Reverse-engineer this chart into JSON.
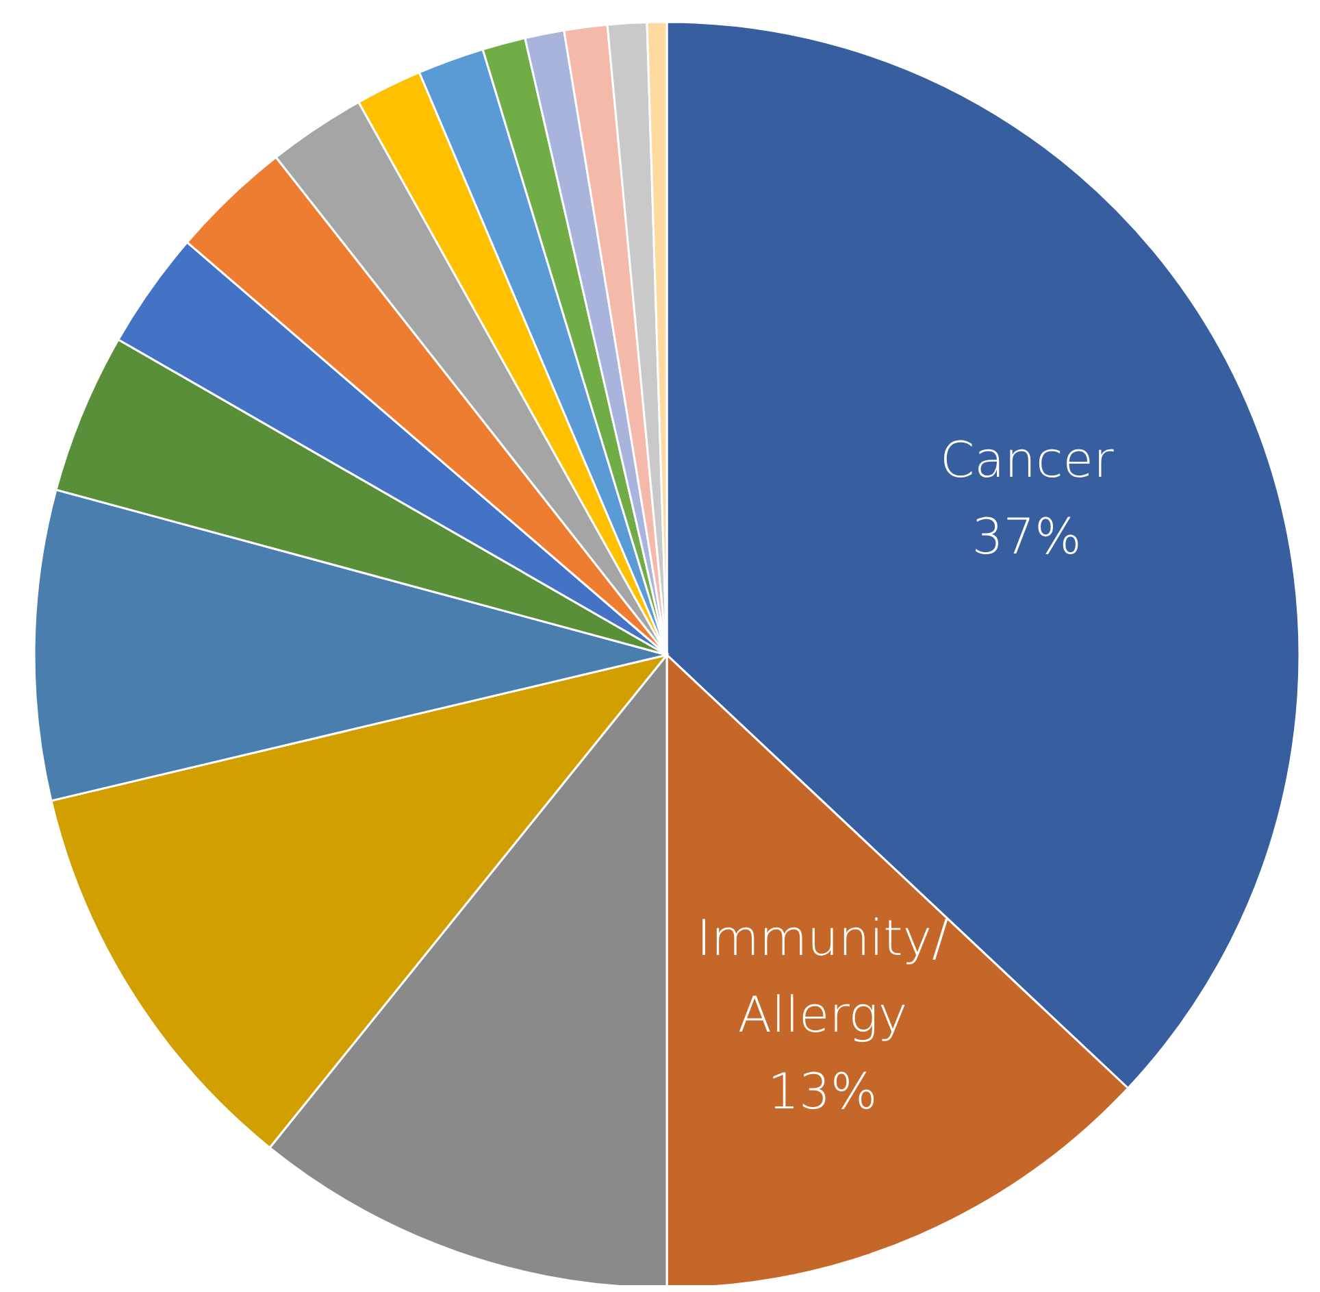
{
  "chart_data": {
    "type": "pie",
    "categories": [
      "Cancer",
      "Immunity/Allergy",
      null,
      null,
      null,
      null,
      null,
      null,
      null,
      null,
      null,
      null,
      null,
      null,
      null,
      null
    ],
    "values": [
      37,
      13,
      10.8,
      10.5,
      7.9,
      4.1,
      3.0,
      3.1,
      2.5,
      1.7,
      1.7,
      1.1,
      1.0,
      1.1,
      1.0,
      0.5
    ],
    "value_labels": [
      "37%",
      "13%",
      null,
      null,
      null,
      null,
      null,
      null,
      null,
      null,
      null,
      null,
      null,
      null,
      null,
      null
    ],
    "colors": [
      "#375e9f",
      "#c46728",
      "#8a8a8a",
      "#d19f00",
      "#4a7eae",
      "#5a8f3a",
      "#4472c4",
      "#ed7d31",
      "#a5a5a5",
      "#ffc000",
      "#5b9bd5",
      "#70ad47",
      "#a9b4dc",
      "#f4b9a8",
      "#c9c9c9",
      "#ffd9a0"
    ],
    "legend": false
  }
}
